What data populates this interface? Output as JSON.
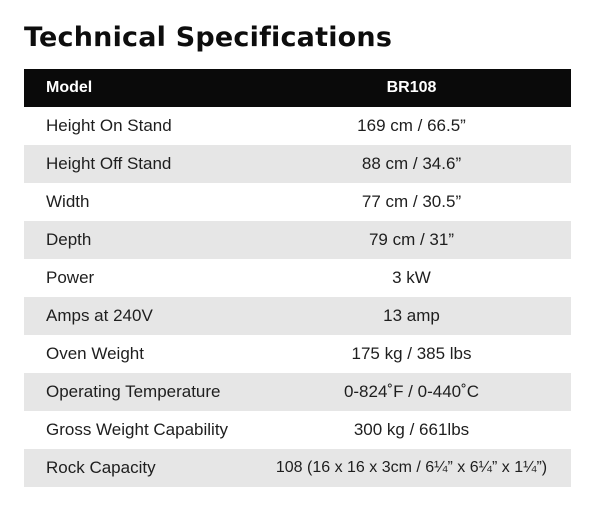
{
  "title": "Technical Specifications",
  "colors": {
    "header_bg": "#0a0a0a",
    "header_text": "#ffffff",
    "stripe": "#e6e6e6",
    "text": "#1e1e1e"
  },
  "table": {
    "header": {
      "label": "Model",
      "value": "BR108"
    },
    "rows": [
      {
        "label": "Height On Stand",
        "value": "169 cm / 66.5”"
      },
      {
        "label": "Height Off Stand",
        "value": "88 cm / 34.6”"
      },
      {
        "label": "Width",
        "value": "77 cm / 30.5”"
      },
      {
        "label": "Depth",
        "value": "79 cm / 31”"
      },
      {
        "label": "Power",
        "value": "3 kW"
      },
      {
        "label": "Amps at 240V",
        "value": "13 amp"
      },
      {
        "label": "Oven Weight",
        "value": "175 kg / 385 lbs"
      },
      {
        "label": "Operating Temperature",
        "value": "0-824˚F / 0-440˚C"
      },
      {
        "label": "Gross Weight Capability",
        "value": "300 kg / 661lbs"
      },
      {
        "label": "Rock Capacity",
        "value": "108 (16 x 16 x 3cm / 6¼” x 6¼” x 1¼”)"
      }
    ]
  }
}
